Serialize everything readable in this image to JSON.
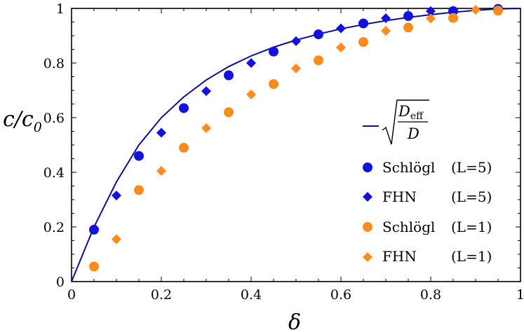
{
  "chart_data": {
    "type": "scatter",
    "xlabel": "δ",
    "ylabel": "c/c",
    "ylabel_sub": "0",
    "xlim": [
      0,
      1
    ],
    "ylim": [
      0,
      1
    ],
    "x_ticks": [
      "0",
      "0.2",
      "0.4",
      "0.6",
      "0.8",
      "1"
    ],
    "y_ticks": [
      "0",
      "0.2",
      "0.4",
      "0.6",
      "0.8",
      "1"
    ],
    "grid": false,
    "legend_position": "right",
    "curve": {
      "label_num": "D",
      "label_num_sub": "eff",
      "label_den": "D",
      "color": "#0d0d9e",
      "x": [
        0,
        0.02,
        0.05,
        0.1,
        0.15,
        0.2,
        0.25,
        0.3,
        0.35,
        0.4,
        0.45,
        0.5,
        0.55,
        0.6,
        0.65,
        0.7,
        0.75,
        0.8,
        0.85,
        0.9,
        0.95,
        1
      ],
      "y": [
        0,
        0.08,
        0.2,
        0.365,
        0.5,
        0.6,
        0.676,
        0.738,
        0.787,
        0.826,
        0.858,
        0.884,
        0.906,
        0.925,
        0.941,
        0.955,
        0.967,
        0.977,
        0.986,
        0.993,
        0.998,
        1
      ]
    },
    "series": [
      {
        "name": "Schlögl",
        "param": "(L=5)",
        "marker": "circle",
        "color": "#1212e0",
        "x": [
          0.05,
          0.15,
          0.25,
          0.35,
          0.45,
          0.55,
          0.65,
          0.75,
          0.85,
          0.95
        ],
        "y": [
          0.19,
          0.46,
          0.635,
          0.755,
          0.842,
          0.905,
          0.945,
          0.972,
          0.99,
          0.998
        ]
      },
      {
        "name": "FHN",
        "param": "(L=5)",
        "marker": "diamond",
        "color": "#1212e0",
        "x": [
          0.1,
          0.2,
          0.3,
          0.4,
          0.5,
          0.6,
          0.7,
          0.8
        ],
        "y": [
          0.315,
          0.545,
          0.697,
          0.8,
          0.88,
          0.927,
          0.964,
          0.99
        ]
      },
      {
        "name": "Schlögl",
        "param": "(L=1)",
        "marker": "circle",
        "color": "#ff8c1a",
        "x": [
          0.05,
          0.15,
          0.25,
          0.35,
          0.45,
          0.55,
          0.65,
          0.75,
          0.85,
          0.95
        ],
        "y": [
          0.055,
          0.335,
          0.49,
          0.62,
          0.723,
          0.81,
          0.877,
          0.93,
          0.965,
          0.992
        ]
      },
      {
        "name": "FHN",
        "param": "(L=1)",
        "marker": "diamond",
        "color": "#ff8c1a",
        "x": [
          0.1,
          0.2,
          0.3,
          0.4,
          0.5,
          0.6,
          0.7,
          0.8,
          0.9
        ],
        "y": [
          0.155,
          0.405,
          0.562,
          0.685,
          0.78,
          0.857,
          0.918,
          0.963,
          0.995
        ]
      }
    ]
  }
}
